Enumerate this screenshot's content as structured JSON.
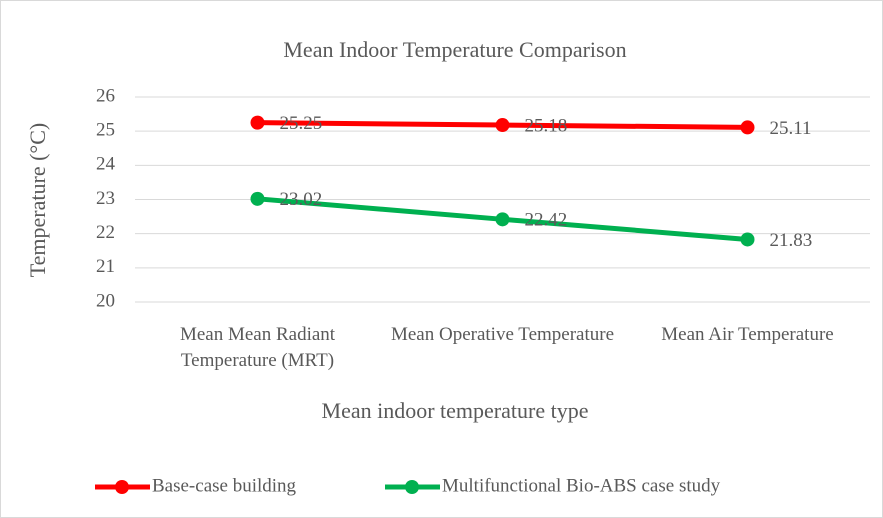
{
  "chart_data": {
    "type": "line",
    "title": "Mean Indoor Temperature Comparison",
    "x_label": "Mean indoor temperature type",
    "y_label": "Temperature (°C)",
    "categories": [
      "Mean Mean Radiant Temperature (MRT)",
      "Mean Operative Temperature",
      "Mean Air Temperature"
    ],
    "series": [
      {
        "name": "Base-case building",
        "color": "#ff0000",
        "values": [
          25.25,
          25.18,
          25.11
        ]
      },
      {
        "name": "Multifunctional Bio-ABS case study",
        "color": "#00b050",
        "values": [
          23.02,
          22.42,
          21.83
        ]
      }
    ],
    "ylim": [
      20,
      26
    ],
    "yticks": [
      20,
      21,
      22,
      23,
      24,
      25,
      26
    ],
    "grid": true,
    "legend": "bottom"
  }
}
